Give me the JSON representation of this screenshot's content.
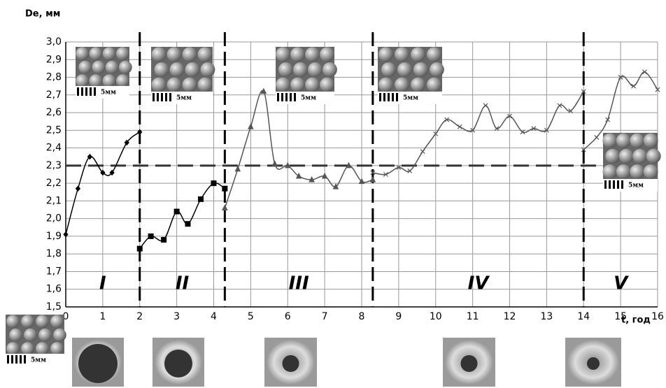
{
  "chart_data": {
    "type": "line",
    "y_label": "De, мм",
    "x_label": "t, год",
    "xlim": [
      0,
      16
    ],
    "xticks": [
      0,
      1,
      2,
      3,
      4,
      5,
      6,
      7,
      8,
      9,
      10,
      11,
      12,
      13,
      14,
      15,
      16
    ],
    "ylim": [
      1.5,
      3.0
    ],
    "yticks": [
      {
        "value": 1.5,
        "label": "1,5"
      },
      {
        "value": 1.6,
        "label": "1,6"
      },
      {
        "value": 1.7,
        "label": "1,7"
      },
      {
        "value": 1.8,
        "label": "1,8"
      },
      {
        "value": 1.9,
        "label": "1,9"
      },
      {
        "value": 2.0,
        "label": "2,0"
      },
      {
        "value": 2.1,
        "label": "2,1"
      },
      {
        "value": 2.2,
        "label": "2,2"
      },
      {
        "value": 2.3,
        "label": "2,3"
      },
      {
        "value": 2.4,
        "label": "2,4"
      },
      {
        "value": 2.5,
        "label": "2,5"
      },
      {
        "value": 2.6,
        "label": "2,6"
      },
      {
        "value": 2.7,
        "label": "2,7"
      },
      {
        "value": 2.8,
        "label": "2,8"
      },
      {
        "value": 2.9,
        "label": "2,9"
      },
      {
        "value": 3.0,
        "label": "3,0"
      }
    ],
    "grid": true,
    "threshold": 2.3,
    "dividers": [
      2,
      4.3,
      8.3,
      14
    ],
    "region_labels": [
      "I",
      "II",
      "III",
      "IV",
      "V"
    ],
    "annotations": [
      "5мм",
      "5мм",
      "5мм",
      "5мм",
      "5мм",
      "5мм"
    ],
    "series": [
      {
        "color": "#000000",
        "marker": "diamond",
        "x": [
          0,
          0.33,
          0.65,
          1.0,
          1.25,
          1.65,
          2.0
        ],
        "values": [
          1.91,
          2.17,
          2.35,
          2.26,
          2.26,
          2.43,
          2.49
        ]
      },
      {
        "color": "#000000",
        "marker": "square",
        "x": [
          2.0,
          2.3,
          2.65,
          3.0,
          3.3,
          3.65,
          4.0,
          4.3
        ],
        "values": [
          1.83,
          1.9,
          1.88,
          2.04,
          1.97,
          2.11,
          2.2,
          2.17
        ]
      },
      {
        "color": "#555555",
        "marker": "triangle",
        "x": [
          4.3,
          4.65,
          5.0,
          5.35,
          5.65,
          6.0,
          6.3,
          6.65,
          7.0,
          7.3,
          7.65,
          8.0,
          8.3
        ],
        "values": [
          2.06,
          2.28,
          2.52,
          2.72,
          2.31,
          2.3,
          2.24,
          2.22,
          2.24,
          2.18,
          2.3,
          2.21,
          2.22
        ]
      },
      {
        "color": "#555555",
        "marker": "x",
        "x": [
          8.3,
          8.65,
          9.0,
          9.3,
          9.65,
          10.0,
          10.3,
          10.65,
          11.0,
          11.35,
          11.65,
          12.0,
          12.35,
          12.65,
          13.0,
          13.35,
          13.65,
          14.0
        ],
        "values": [
          2.26,
          2.25,
          2.29,
          2.27,
          2.38,
          2.48,
          2.56,
          2.52,
          2.5,
          2.64,
          2.51,
          2.58,
          2.49,
          2.51,
          2.5,
          2.64,
          2.61,
          2.72
        ]
      },
      {
        "color": "#555555",
        "marker": "x",
        "x": [
          14.0,
          14.35,
          14.65,
          15.0,
          15.35,
          15.65,
          16.0
        ],
        "values": [
          2.39,
          2.46,
          2.56,
          2.8,
          2.75,
          2.83,
          2.73
        ]
      }
    ]
  }
}
